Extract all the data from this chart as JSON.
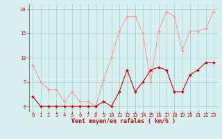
{
  "x": [
    0,
    1,
    2,
    3,
    4,
    5,
    6,
    7,
    8,
    9,
    10,
    11,
    12,
    13,
    14,
    15,
    16,
    17,
    18,
    19,
    20,
    21,
    22,
    23
  ],
  "vent_moyen": [
    2,
    0,
    0,
    0,
    0,
    0,
    0,
    0,
    0,
    1,
    0,
    3,
    7.5,
    3,
    5,
    7.5,
    8,
    7.5,
    3,
    3,
    6.5,
    7.5,
    9,
    9
  ],
  "rafales": [
    8.5,
    5,
    3.5,
    3.5,
    1,
    3,
    1,
    1,
    0,
    5.5,
    10,
    15.5,
    18.5,
    18.5,
    15,
    5,
    15.5,
    19.5,
    18.5,
    11.5,
    15.5,
    15.5,
    16,
    19.5
  ],
  "color_moyen": "#cc0000",
  "color_rafales": "#ff9999",
  "bg_color": "#d6f0f0",
  "grid_color": "#b0d0d0",
  "xlabel": "Vent moyen/en rafales ( km/h )",
  "ylim": [
    -1,
    21
  ],
  "xlim": [
    -0.5,
    23.5
  ],
  "yticks": [
    0,
    5,
    10,
    15,
    20
  ],
  "xticks": [
    0,
    1,
    2,
    3,
    4,
    5,
    6,
    7,
    8,
    9,
    10,
    11,
    12,
    13,
    14,
    15,
    16,
    17,
    18,
    19,
    20,
    21,
    22,
    23
  ],
  "tick_fontsize": 5,
  "xlabel_fontsize": 6,
  "marker_size": 2,
  "linewidth": 0.8
}
